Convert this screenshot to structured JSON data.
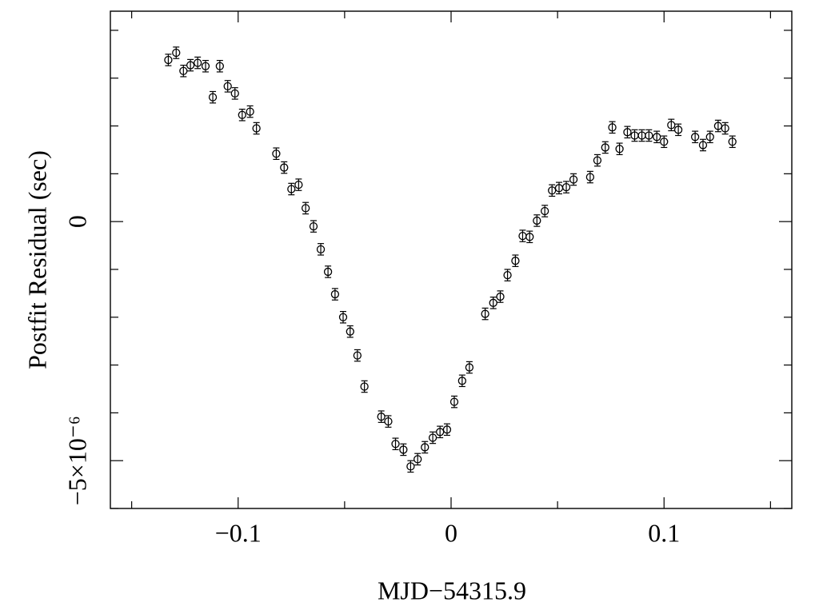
{
  "chart_data": {
    "type": "scatter",
    "x_label": "MJD−54315.9",
    "y_label": "Postfit Residual (sec)",
    "color": "#000000",
    "xlim": [
      -0.16,
      0.16
    ],
    "ylim": [
      -6e-06,
      4.4e-06
    ],
    "xticks": [
      {
        "value": -0.1,
        "label": "−0.1"
      },
      0,
      0.1
    ],
    "xminor_ticks": [
      -0.15,
      -0.05,
      0.05,
      0.15
    ],
    "yticks": [
      {
        "value": -5e-06,
        "label": "−5×10⁻⁶"
      },
      0
    ],
    "yminor_ticks": [
      -6e-06,
      -4e-06,
      -3e-06,
      -2e-06,
      -1e-06,
      1e-06,
      2e-06,
      3e-06,
      4e-06
    ],
    "x": [
      -0.1328,
      -0.1291,
      -0.1257,
      -0.1224,
      -0.119,
      -0.1153,
      -0.1119,
      -0.1086,
      -0.1049,
      -0.1015,
      -0.0981,
      -0.0944,
      -0.0914,
      -0.0821,
      -0.0784,
      -0.075,
      -0.0716,
      -0.0683,
      -0.0646,
      -0.0612,
      -0.0578,
      -0.0545,
      -0.0507,
      -0.0474,
      -0.044,
      -0.0407,
      -0.0328,
      -0.0295,
      -0.0261,
      -0.0224,
      -0.019,
      -0.0157,
      -0.0123,
      -0.0086,
      -0.0052,
      -0.0019,
      0.0015,
      0.0052,
      0.0086,
      0.016,
      0.0198,
      0.0231,
      0.0265,
      0.0302,
      0.0336,
      0.0369,
      0.0403,
      0.044,
      0.0474,
      0.0507,
      0.0541,
      0.0575,
      0.0653,
      0.0687,
      0.0724,
      0.0757,
      0.0791,
      0.0828,
      0.0862,
      0.0896,
      0.0929,
      0.0966,
      0.1,
      0.1034,
      0.1067,
      0.1146,
      0.1183,
      0.1216,
      0.1254,
      0.1287,
      0.1321
    ],
    "values": [
      3.38e-06,
      3.53e-06,
      3.15e-06,
      3.27e-06,
      3.32e-06,
      3.25e-06,
      2.6e-06,
      3.25e-06,
      2.83e-06,
      2.68e-06,
      2.23e-06,
      2.3e-06,
      1.95e-06,
      1.42e-06,
      1.13e-06,
      6.8e-07,
      7.7e-07,
      2.8e-07,
      -1e-07,
      -5.8e-07,
      -1.05e-06,
      -1.52e-06,
      -2e-06,
      -2.3e-06,
      -2.8e-06,
      -3.45e-06,
      -4.08e-06,
      -4.18e-06,
      -4.65e-06,
      -4.77e-06,
      -5.12e-06,
      -4.97e-06,
      -4.72e-06,
      -4.52e-06,
      -4.4e-06,
      -4.35e-06,
      -3.77e-06,
      -3.33e-06,
      -3.05e-06,
      -1.93e-06,
      -1.7e-06,
      -1.57e-06,
      -1.12e-06,
      -8.2e-07,
      -3e-07,
      -3.2e-07,
      2e-08,
      2.2e-07,
      6.5e-07,
      7e-07,
      7.2e-07,
      8.8e-07,
      9.3e-07,
      1.28e-06,
      1.55e-06,
      1.97e-06,
      1.52e-06,
      1.87e-06,
      1.8e-06,
      1.8e-06,
      1.8e-06,
      1.77e-06,
      1.67e-06,
      2.02e-06,
      1.92e-06,
      1.77e-06,
      1.6e-06,
      1.77e-06,
      2e-06,
      1.95e-06,
      1.67e-06
    ],
    "errors": [
      1.2e-07,
      1.2e-07,
      1.2e-07,
      1.2e-07,
      1.2e-07,
      1.2e-07,
      1.2e-07,
      1.2e-07,
      1.2e-07,
      1.2e-07,
      1.2e-07,
      1.2e-07,
      1.2e-07,
      1.2e-07,
      1.2e-07,
      1.2e-07,
      1.2e-07,
      1.2e-07,
      1.2e-07,
      1.2e-07,
      1.2e-07,
      1.2e-07,
      1.2e-07,
      1.2e-07,
      1.2e-07,
      1.2e-07,
      1.2e-07,
      1.2e-07,
      1.2e-07,
      1.2e-07,
      1.2e-07,
      1.2e-07,
      1.2e-07,
      1.2e-07,
      1.2e-07,
      1.2e-07,
      1.2e-07,
      1.2e-07,
      1.2e-07,
      1.2e-07,
      1.2e-07,
      1.2e-07,
      1.2e-07,
      1.2e-07,
      1.2e-07,
      1.2e-07,
      1.2e-07,
      1.2e-07,
      1.2e-07,
      1.2e-07,
      1.2e-07,
      1.2e-07,
      1.2e-07,
      1.2e-07,
      1.2e-07,
      1.2e-07,
      1.2e-07,
      1.2e-07,
      1.2e-07,
      1.2e-07,
      1.2e-07,
      1.2e-07,
      1.2e-07,
      1.2e-07,
      1.2e-07,
      1.2e-07,
      1.2e-07,
      1.2e-07,
      1.2e-07,
      1.2e-07,
      1.2e-07
    ]
  }
}
